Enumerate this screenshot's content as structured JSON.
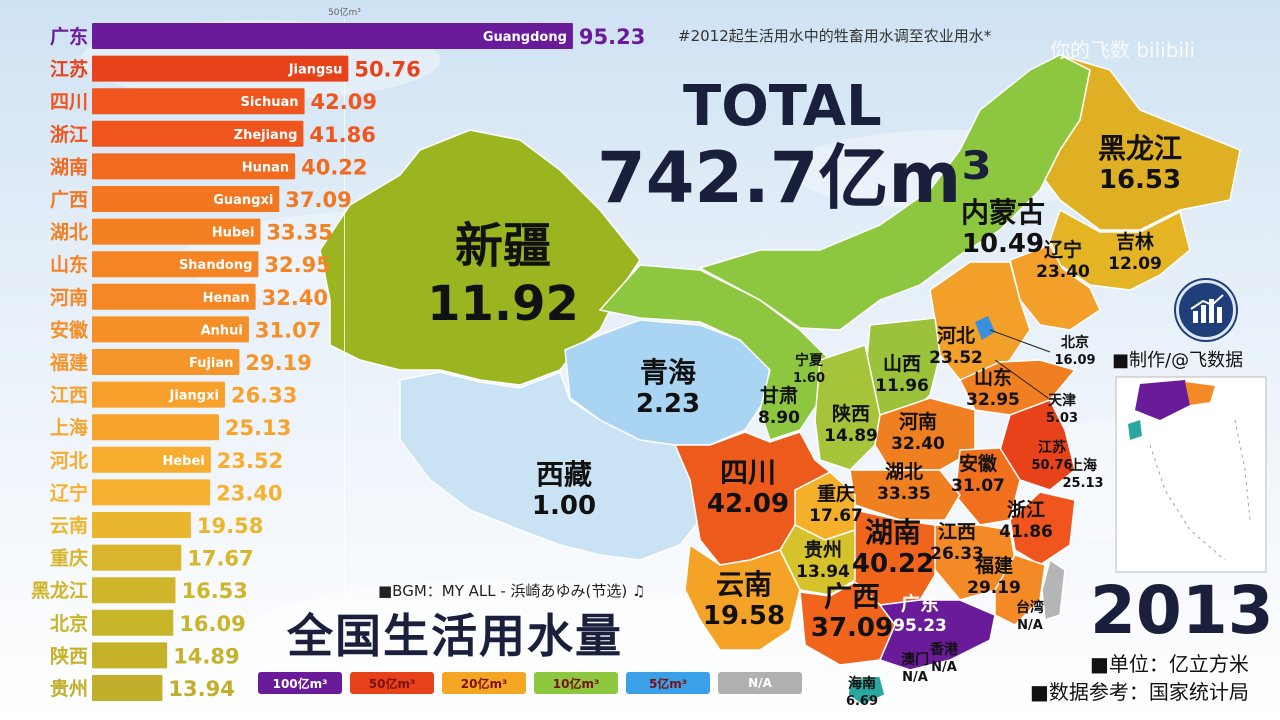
{
  "header": {
    "note": "#2012起生活用水中的牲畜用水调至农业用水*",
    "total_label": "TOTAL",
    "total_value": "742.7亿m³",
    "watermark": "你的飞数 bilibili"
  },
  "footer": {
    "bgm": "■BGM：MY ALL - 浜崎あゆみ(节选) ♫",
    "main_title": "全国生活用水量",
    "year": "2013",
    "unit": "■单位：亿立方米",
    "source": "■数据参考：国家统计局",
    "credit": "■制作/@飞数据"
  },
  "legend": [
    {
      "label": "100亿m³",
      "color": "#6a1b9a"
    },
    {
      "label": "50亿m³",
      "color": "#e8421a"
    },
    {
      "label": "20亿m³",
      "color": "#f5a623"
    },
    {
      "label": "10亿m³",
      "color": "#8dc63f"
    },
    {
      "label": "5亿m³",
      "color": "#3aa0e8"
    },
    {
      "label": "N/A",
      "color": "#b0b0b0"
    }
  ],
  "map_labels": [
    {
      "name": "新疆",
      "value": "11.92",
      "size": "xl",
      "color": "#111"
    },
    {
      "name": "西藏",
      "value": "1.00",
      "size": "l",
      "color": "#111"
    },
    {
      "name": "青海",
      "value": "2.23",
      "size": "l",
      "color": "#111"
    },
    {
      "name": "四川",
      "value": "42.09",
      "size": "l",
      "color": "#111"
    },
    {
      "name": "内蒙古",
      "value": "10.49",
      "size": "l",
      "color": "#111"
    },
    {
      "name": "黑龙江",
      "value": "16.53",
      "size": "l",
      "color": "#111"
    },
    {
      "name": "吉林",
      "value": "12.09",
      "size": "m",
      "color": "#111"
    },
    {
      "name": "辽宁",
      "value": "23.40",
      "size": "m",
      "color": "#111"
    },
    {
      "name": "河北",
      "value": "23.52",
      "size": "m",
      "color": "#111"
    },
    {
      "name": "北京",
      "value": "16.09",
      "size": "s",
      "color": "#111"
    },
    {
      "name": "天津",
      "value": "5.03",
      "size": "s",
      "color": "#111"
    },
    {
      "name": "山西",
      "value": "11.96",
      "size": "m",
      "color": "#111"
    },
    {
      "name": "山东",
      "value": "32.95",
      "size": "m",
      "color": "#111"
    },
    {
      "name": "宁夏",
      "value": "1.60",
      "size": "s",
      "color": "#111"
    },
    {
      "name": "甘肃",
      "value": "8.90",
      "size": "m",
      "color": "#111"
    },
    {
      "name": "陕西",
      "value": "14.89",
      "size": "m",
      "color": "#111"
    },
    {
      "name": "河南",
      "value": "32.40",
      "size": "m",
      "color": "#111"
    },
    {
      "name": "江苏",
      "value": "50.76",
      "size": "s",
      "color": "#111"
    },
    {
      "name": "安徽",
      "value": "31.07",
      "size": "m",
      "color": "#111"
    },
    {
      "name": "上海",
      "value": "25.13",
      "size": "s",
      "color": "#111"
    },
    {
      "name": "湖北",
      "value": "33.35",
      "size": "m",
      "color": "#111"
    },
    {
      "name": "重庆",
      "value": "17.67",
      "size": "m",
      "color": "#111"
    },
    {
      "name": "浙江",
      "value": "41.86",
      "size": "m",
      "color": "#111"
    },
    {
      "name": "湖南",
      "value": "40.22",
      "size": "l",
      "color": "#111"
    },
    {
      "name": "江西",
      "value": "26.33",
      "size": "m",
      "color": "#111"
    },
    {
      "name": "贵州",
      "value": "13.94",
      "size": "m",
      "color": "#111"
    },
    {
      "name": "福建",
      "value": "29.19",
      "size": "m",
      "color": "#111"
    },
    {
      "name": "云南",
      "value": "19.58",
      "size": "l",
      "color": "#111"
    },
    {
      "name": "广西",
      "value": "37.09",
      "size": "l",
      "color": "#111"
    },
    {
      "name": "广东",
      "value": "95.23",
      "size": "m",
      "color": "#ffffff"
    },
    {
      "name": "台湾",
      "value": "N/A",
      "size": "s",
      "color": "#111"
    },
    {
      "name": "香港",
      "value": "N/A",
      "size": "s",
      "color": "#111"
    },
    {
      "name": "澳门",
      "value": "N/A",
      "size": "s",
      "color": "#111"
    },
    {
      "name": "海南",
      "value": "6.69",
      "size": "s",
      "color": "#111"
    }
  ],
  "chart_data": {
    "type": "bar",
    "orientation": "horizontal",
    "axis_tick_label": "50亿m³",
    "axis_tick_value": 50,
    "grid": true,
    "categories": [
      "广东",
      "江苏",
      "四川",
      "浙江",
      "湖南",
      "广西",
      "湖北",
      "山东",
      "河南",
      "安徽",
      "福建",
      "江西",
      "上海",
      "河北",
      "辽宁",
      "云南",
      "重庆",
      "黑龙江",
      "北京",
      "陕西",
      "贵州"
    ],
    "bar_labels": [
      "Guangdong",
      "Jiangsu",
      "Sichuan",
      "Zhejiang",
      "Hunan",
      "Guangxi",
      "Hubei",
      "Shandong",
      "Henan",
      "Anhui",
      "Fujian",
      "Jiangxi",
      "",
      "Hebei",
      "",
      "",
      "",
      "",
      "",
      "",
      ""
    ],
    "values": [
      95.23,
      50.76,
      42.09,
      41.86,
      40.22,
      37.09,
      33.35,
      32.95,
      32.4,
      31.07,
      29.19,
      26.33,
      25.13,
      23.52,
      23.4,
      19.58,
      17.67,
      16.53,
      16.09,
      14.89,
      13.94
    ],
    "value_labels": [
      "95.23",
      "50.76",
      "42.09",
      "41.86",
      "40.22",
      "37.09",
      "33.35",
      "32.95",
      "32.40",
      "31.07",
      "29.19",
      "26.33",
      "25.13",
      "23.52",
      "23.40",
      "19.58",
      "17.67",
      "16.53",
      "16.09",
      "14.89",
      "13.94"
    ],
    "colors": [
      "#6a1b9a",
      "#e8421a",
      "#f0551d",
      "#f0551d",
      "#f26a1e",
      "#f37620",
      "#f48022",
      "#f48424",
      "#f58726",
      "#f58f28",
      "#f6962a",
      "#f7a02b",
      "#f7a42c",
      "#f8ad2e",
      "#f8b030",
      "#eab62e",
      "#d8b52a",
      "#cfb52a",
      "#c9b52a",
      "#c6b22a",
      "#c2ae2a"
    ]
  }
}
